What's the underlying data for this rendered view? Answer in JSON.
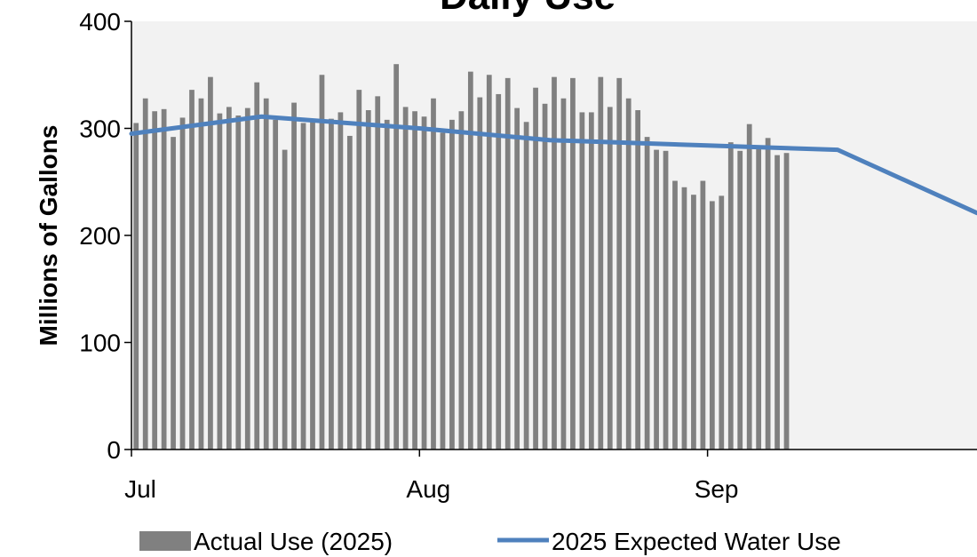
{
  "chart_data": {
    "type": "bar",
    "title": "Daily Use",
    "ylabel": "Millions of Gallons",
    "xlabel": "",
    "ylim": [
      0,
      400
    ],
    "yticks": [
      0,
      100,
      200,
      300,
      400
    ],
    "x_start": "2025-07-01",
    "x_end": "2025-09-30",
    "xticks": [
      {
        "date": "2025-07-01",
        "label": "Jul"
      },
      {
        "date": "2025-08-01",
        "label": "Aug"
      },
      {
        "date": "2025-09-01",
        "label": "Sep"
      }
    ],
    "grid": false,
    "legend_position": "bottom",
    "series": [
      {
        "name": "Actual Use (2025)",
        "type": "bar",
        "color": "#808080",
        "dates": [
          "2025-07-01",
          "2025-07-02",
          "2025-07-03",
          "2025-07-04",
          "2025-07-05",
          "2025-07-06",
          "2025-07-07",
          "2025-07-08",
          "2025-07-09",
          "2025-07-10",
          "2025-07-11",
          "2025-07-12",
          "2025-07-13",
          "2025-07-14",
          "2025-07-15",
          "2025-07-16",
          "2025-07-17",
          "2025-07-18",
          "2025-07-19",
          "2025-07-20",
          "2025-07-21",
          "2025-07-22",
          "2025-07-23",
          "2025-07-24",
          "2025-07-25",
          "2025-07-26",
          "2025-07-27",
          "2025-07-28",
          "2025-07-29",
          "2025-07-30",
          "2025-07-31",
          "2025-08-01",
          "2025-08-02",
          "2025-08-03",
          "2025-08-04",
          "2025-08-05",
          "2025-08-06",
          "2025-08-07",
          "2025-08-08",
          "2025-08-09",
          "2025-08-10",
          "2025-08-11",
          "2025-08-12",
          "2025-08-13",
          "2025-08-14",
          "2025-08-15",
          "2025-08-16",
          "2025-08-17",
          "2025-08-18",
          "2025-08-19",
          "2025-08-20",
          "2025-08-21",
          "2025-08-22",
          "2025-08-23",
          "2025-08-24",
          "2025-08-25",
          "2025-08-26",
          "2025-08-27",
          "2025-08-28",
          "2025-08-29",
          "2025-08-30",
          "2025-08-31",
          "2025-09-01",
          "2025-09-02",
          "2025-09-03",
          "2025-09-04",
          "2025-09-05",
          "2025-09-06",
          "2025-09-07"
        ],
        "values": [
          305,
          328,
          316,
          318,
          292,
          310,
          336,
          328,
          348,
          314,
          320,
          312,
          319,
          343,
          328,
          308,
          280,
          324,
          305,
          306,
          350,
          309,
          315,
          293,
          336,
          317,
          330,
          308,
          360,
          320,
          316,
          311,
          328,
          296,
          308,
          316,
          353,
          329,
          350,
          332,
          347,
          319,
          306,
          338,
          323,
          348,
          328,
          347,
          315,
          315,
          348,
          320,
          347,
          328,
          317,
          292,
          280,
          279,
          251,
          245,
          238,
          251,
          232,
          237,
          287,
          279,
          304,
          283,
          291
        ],
        "values_tail_note": "",
        "tail_values": [
          275,
          277
        ]
      },
      {
        "name": "2025 Expected Water Use",
        "type": "line",
        "color": "#4f81bd",
        "points": [
          {
            "date": "2025-07-01",
            "value": 295
          },
          {
            "date": "2025-07-15",
            "value": 311
          },
          {
            "date": "2025-08-01",
            "value": 300
          },
          {
            "date": "2025-08-15",
            "value": 289
          },
          {
            "date": "2025-09-01",
            "value": 284
          },
          {
            "date": "2025-09-15",
            "value": 280
          },
          {
            "date": "2025-09-30",
            "value": 221
          }
        ]
      }
    ]
  }
}
